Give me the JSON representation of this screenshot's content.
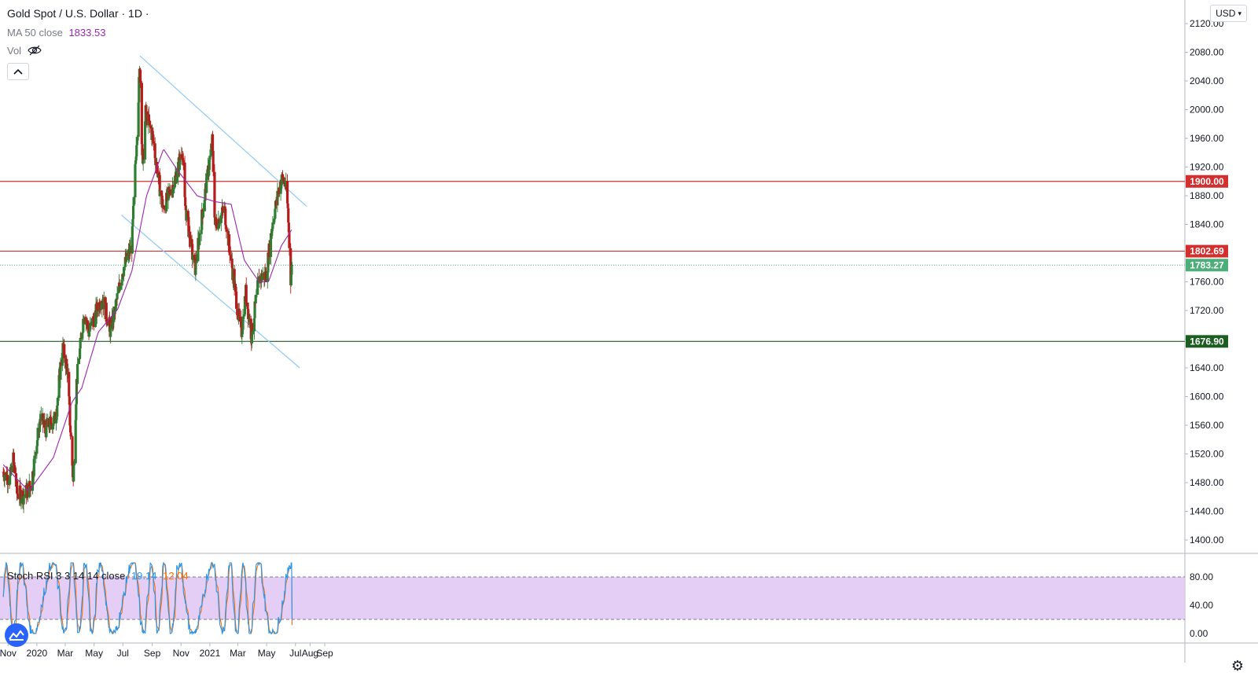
{
  "header": {
    "title": "Gold Spot / U.S. Dollar · 1D ·",
    "ma_label": "MA 50 close",
    "ma_value": "1833.53",
    "vol_label": "Vol",
    "currency": "USD"
  },
  "stoch": {
    "label": "Stoch RSI 3 3 14 14 close",
    "k_value": "19.14",
    "d_value": "12.04"
  },
  "colors": {
    "up": "#26a69a",
    "up_body": "#2e7d32",
    "down": "#b71c1c",
    "ma": "#9c27b0",
    "channel": "#90caf9",
    "level_red": "#d32f2f",
    "level_green": "#1b5e20",
    "stoch_k": "#2196f3",
    "stoch_d": "#ff6d00",
    "stoch_band": "#e1c6f5",
    "last_price": "#4caf7a"
  },
  "chart_data": {
    "type": "candlestick",
    "symbol": "XAUUSD",
    "timeframe": "1D",
    "ylim": [
      1380,
      2130
    ],
    "y_ticks": [
      "2120.00",
      "2080.00",
      "2040.00",
      "2000.00",
      "1960.00",
      "1920.00",
      "1880.00",
      "1840.00",
      "1800.00",
      "1760.00",
      "1720.00",
      "1680.00",
      "1640.00",
      "1600.00",
      "1560.00",
      "1520.00",
      "1480.00",
      "1440.00",
      "1400.00"
    ],
    "x_ticks": [
      "Nov",
      "2020",
      "Mar",
      "May",
      "Jul",
      "Sep",
      "Nov",
      "2021",
      "Mar",
      "May",
      "Jul",
      "Aug",
      "Sep"
    ],
    "price_path": [
      [
        "2019-10-22",
        1495
      ],
      [
        "2019-11-05",
        1485
      ],
      [
        "2019-11-12",
        1512
      ],
      [
        "2019-11-20",
        1465
      ],
      [
        "2019-12-05",
        1462
      ],
      [
        "2019-12-20",
        1478
      ],
      [
        "2020-01-08",
        1570
      ],
      [
        "2020-01-20",
        1555
      ],
      [
        "2020-02-10",
        1570
      ],
      [
        "2020-02-24",
        1670
      ],
      [
        "2020-03-05",
        1640
      ],
      [
        "2020-03-18",
        1480
      ],
      [
        "2020-03-25",
        1620
      ],
      [
        "2020-04-10",
        1720
      ],
      [
        "2020-04-20",
        1690
      ],
      [
        "2020-05-18",
        1740
      ],
      [
        "2020-06-05",
        1690
      ],
      [
        "2020-06-30",
        1775
      ],
      [
        "2020-07-20",
        1810
      ],
      [
        "2020-08-06",
        2065
      ],
      [
        "2020-08-12",
        1915
      ],
      [
        "2020-08-18",
        1995
      ],
      [
        "2020-09-01",
        1965
      ],
      [
        "2020-09-24",
        1860
      ],
      [
        "2020-10-20",
        1905
      ],
      [
        "2020-11-04",
        1945
      ],
      [
        "2020-11-09",
        1870
      ],
      [
        "2020-11-30",
        1775
      ],
      [
        "2020-12-21",
        1880
      ],
      [
        "2021-01-06",
        1955
      ],
      [
        "2021-01-12",
        1840
      ],
      [
        "2021-02-01",
        1860
      ],
      [
        "2021-02-18",
        1775
      ],
      [
        "2021-03-08",
        1685
      ],
      [
        "2021-03-18",
        1745
      ],
      [
        "2021-03-30",
        1685
      ],
      [
        "2021-04-15",
        1765
      ],
      [
        "2021-04-30",
        1770
      ],
      [
        "2021-05-14",
        1845
      ],
      [
        "2021-06-01",
        1905
      ],
      [
        "2021-06-10",
        1895
      ],
      [
        "2021-06-15",
        1860
      ],
      [
        "2021-06-21",
        1765
      ],
      [
        "2021-06-24",
        1783.27
      ]
    ],
    "ma50_path": [
      [
        "2019-10-22",
        1505
      ],
      [
        "2019-12-15",
        1468
      ],
      [
        "2020-02-05",
        1515
      ],
      [
        "2020-03-15",
        1592
      ],
      [
        "2020-04-05",
        1612
      ],
      [
        "2020-05-10",
        1690
      ],
      [
        "2020-06-20",
        1722
      ],
      [
        "2020-07-20",
        1775
      ],
      [
        "2020-08-20",
        1880
      ],
      [
        "2020-09-25",
        1945
      ],
      [
        "2020-10-25",
        1915
      ],
      [
        "2020-12-05",
        1880
      ],
      [
        "2021-01-10",
        1872
      ],
      [
        "2021-02-15",
        1868
      ],
      [
        "2021-03-15",
        1790
      ],
      [
        "2021-04-15",
        1760
      ],
      [
        "2021-05-05",
        1760
      ],
      [
        "2021-06-01",
        1810
      ],
      [
        "2021-06-24",
        1833.53
      ]
    ],
    "levels": [
      {
        "label": "1900.00",
        "value": 1900,
        "color": "red"
      },
      {
        "label": "1802.69",
        "value": 1802.69,
        "color": "red"
      },
      {
        "label": "1676.90",
        "value": 1676.9,
        "color": "green"
      }
    ],
    "last_price": {
      "label": "1783.27",
      "value": 1783.27
    },
    "channel_lines": [
      {
        "from": [
          "2020-08-06",
          2075
        ],
        "to": [
          "2021-07-25",
          1865
        ]
      },
      {
        "from": [
          "2020-06-28",
          1853
        ],
        "to": [
          "2021-07-10",
          1640
        ]
      }
    ],
    "stoch_rsi": {
      "ylim": [
        -5,
        105
      ],
      "y_ticks": [
        "80.00",
        "40.00",
        "0.00"
      ],
      "band": [
        20,
        80
      ],
      "k_last": 19.14,
      "d_last": 12.04
    }
  }
}
